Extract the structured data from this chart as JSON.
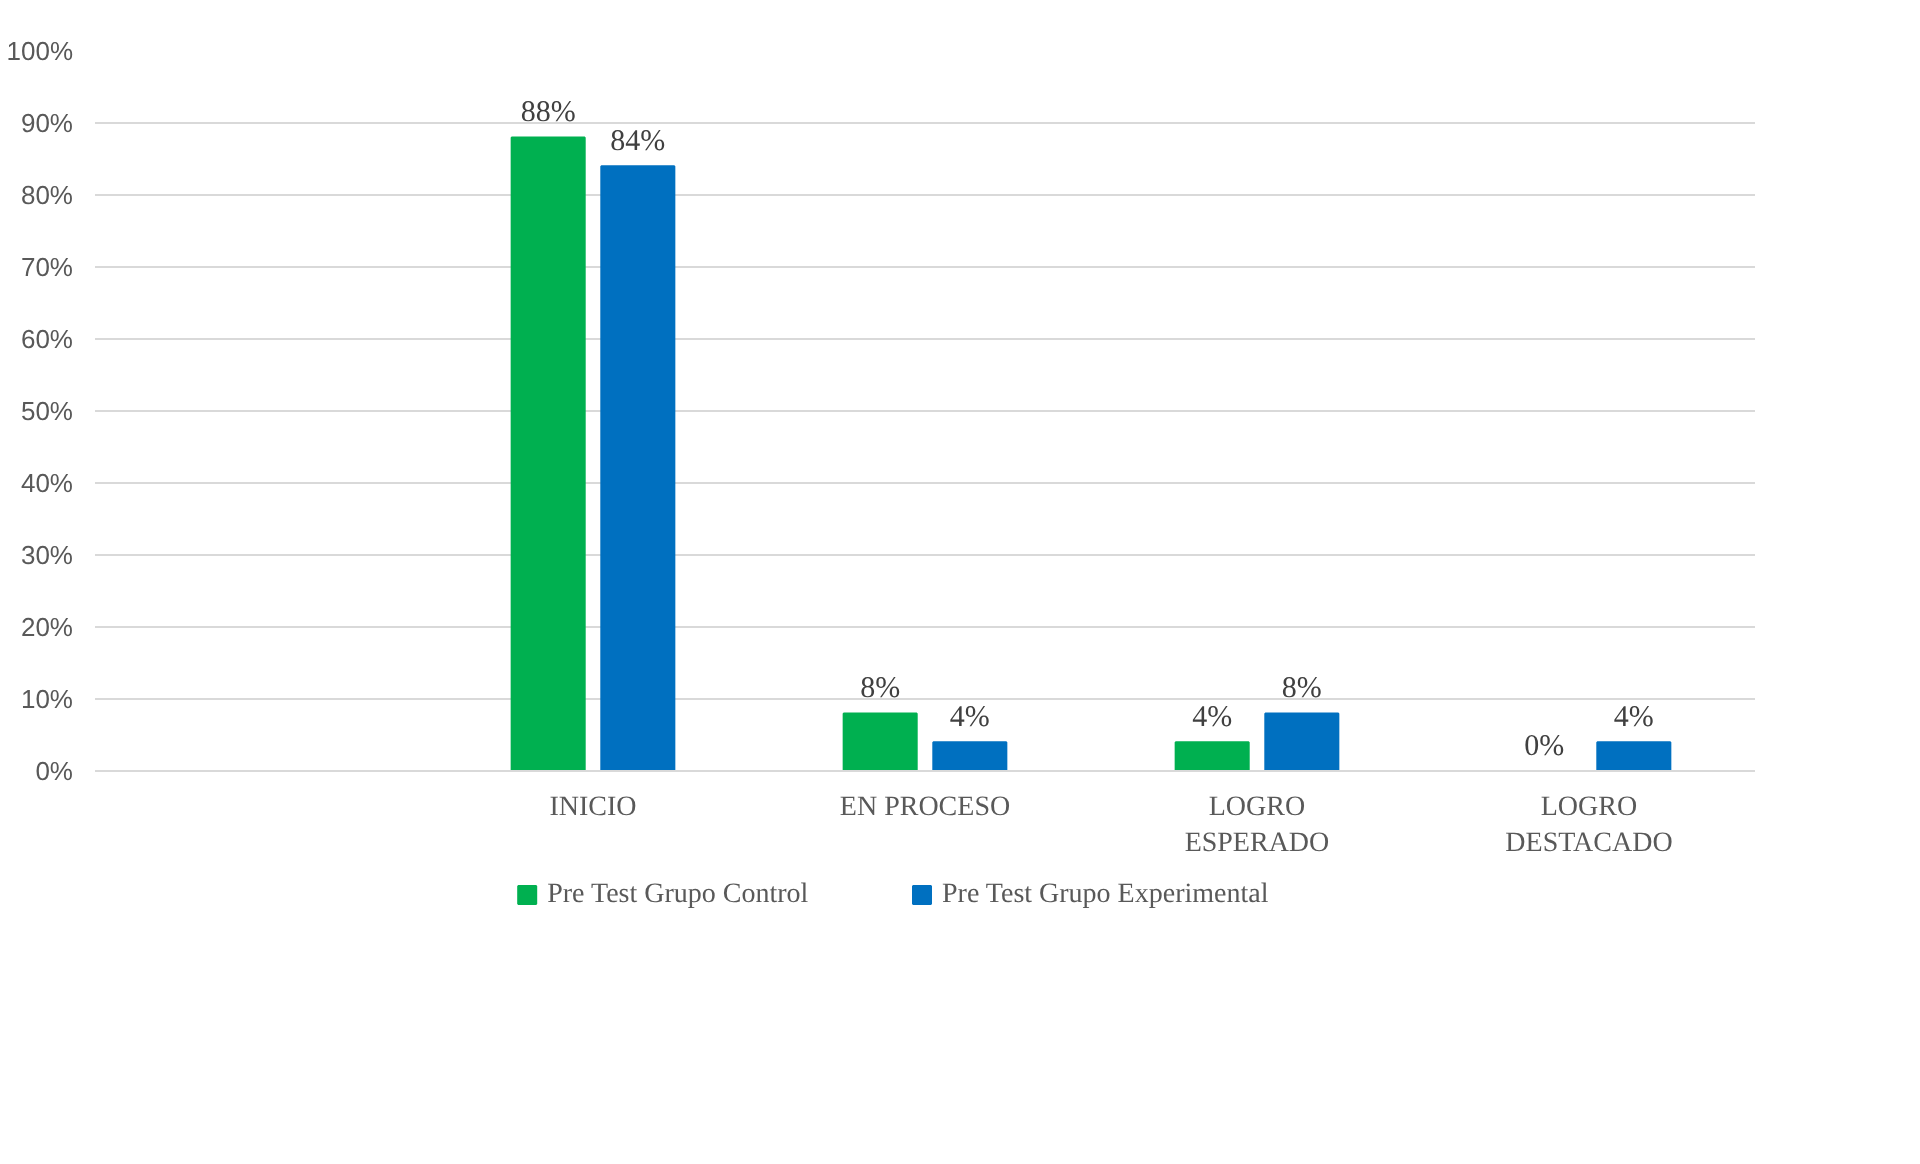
{
  "chart_data": {
    "type": "bar",
    "categories": [
      null,
      "INICIO",
      "EN PROCESO",
      "LOGRO\nESPERADO",
      "LOGRO\nDESTACADO"
    ],
    "series": [
      {
        "name": "Pre Test Grupo Control",
        "color": "#00b050",
        "values": [
          null,
          88,
          8,
          4,
          0
        ],
        "value_labels": [
          null,
          "88%",
          "8%",
          "4%",
          "0%"
        ]
      },
      {
        "name": "Pre Test Grupo Experimental",
        "color": "#0070c0",
        "values": [
          null,
          84,
          4,
          8,
          4
        ],
        "value_labels": [
          null,
          "84%",
          "4%",
          "8%",
          "4%"
        ]
      }
    ],
    "ylim": [
      0,
      100
    ],
    "yticks": [
      {
        "value": 0,
        "label": "0%"
      },
      {
        "value": 10,
        "label": "10%"
      },
      {
        "value": 20,
        "label": "20%"
      },
      {
        "value": 30,
        "label": "30%"
      },
      {
        "value": 40,
        "label": "40%"
      },
      {
        "value": 50,
        "label": "50%"
      },
      {
        "value": 60,
        "label": "60%"
      },
      {
        "value": 70,
        "label": "70%"
      },
      {
        "value": 80,
        "label": "80%"
      },
      {
        "value": 90,
        "label": "90%"
      },
      {
        "value": 100,
        "label": "100%"
      }
    ],
    "grid": "y",
    "legend": "bottom"
  }
}
